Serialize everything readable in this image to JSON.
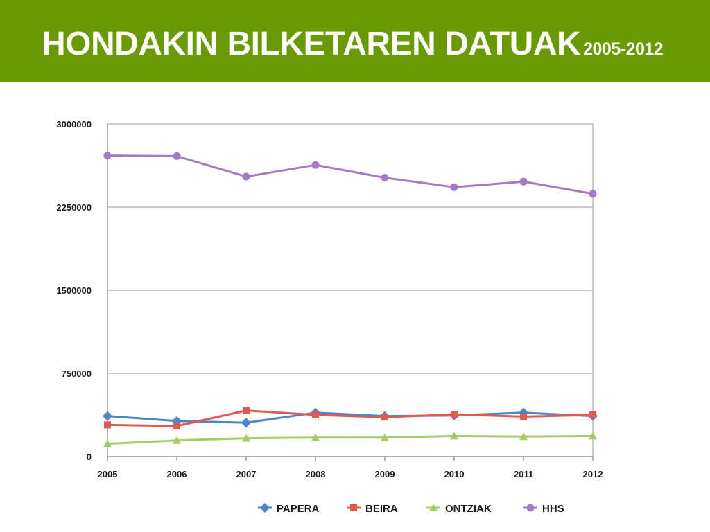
{
  "header": {
    "title": "HONDAKIN BILKETAREN DATUAK",
    "years": "2005-2012",
    "background": "#679a03"
  },
  "chart_data": {
    "type": "line",
    "title": "",
    "xlabel": "",
    "ylabel": "",
    "categories": [
      "2005",
      "2006",
      "2007",
      "2008",
      "2009",
      "2010",
      "2011",
      "2012"
    ],
    "ylim": [
      0,
      3000000
    ],
    "yticks": [
      0,
      750000,
      1500000,
      2250000,
      3000000
    ],
    "ytick_labels": [
      "0",
      "750000",
      "1500000",
      "2250000",
      "3000000"
    ],
    "grid": true,
    "legend_position": "bottom",
    "series": [
      {
        "name": "PAPERA",
        "color": "#4a86c8",
        "marker": "diamond",
        "values": [
          365000,
          320000,
          305000,
          395000,
          365000,
          370000,
          395000,
          365000
        ]
      },
      {
        "name": "BEIRA",
        "color": "#e05a4f",
        "marker": "square",
        "values": [
          285000,
          275000,
          415000,
          375000,
          355000,
          380000,
          360000,
          375000
        ]
      },
      {
        "name": "ONTZIAK",
        "color": "#a6cc6a",
        "marker": "triangle",
        "values": [
          115000,
          145000,
          165000,
          170000,
          170000,
          185000,
          180000,
          185000
        ]
      },
      {
        "name": "HHS",
        "color": "#a27ac6",
        "marker": "circle",
        "values": [
          2715000,
          2710000,
          2525000,
          2630000,
          2515000,
          2430000,
          2480000,
          2370000
        ]
      }
    ]
  }
}
